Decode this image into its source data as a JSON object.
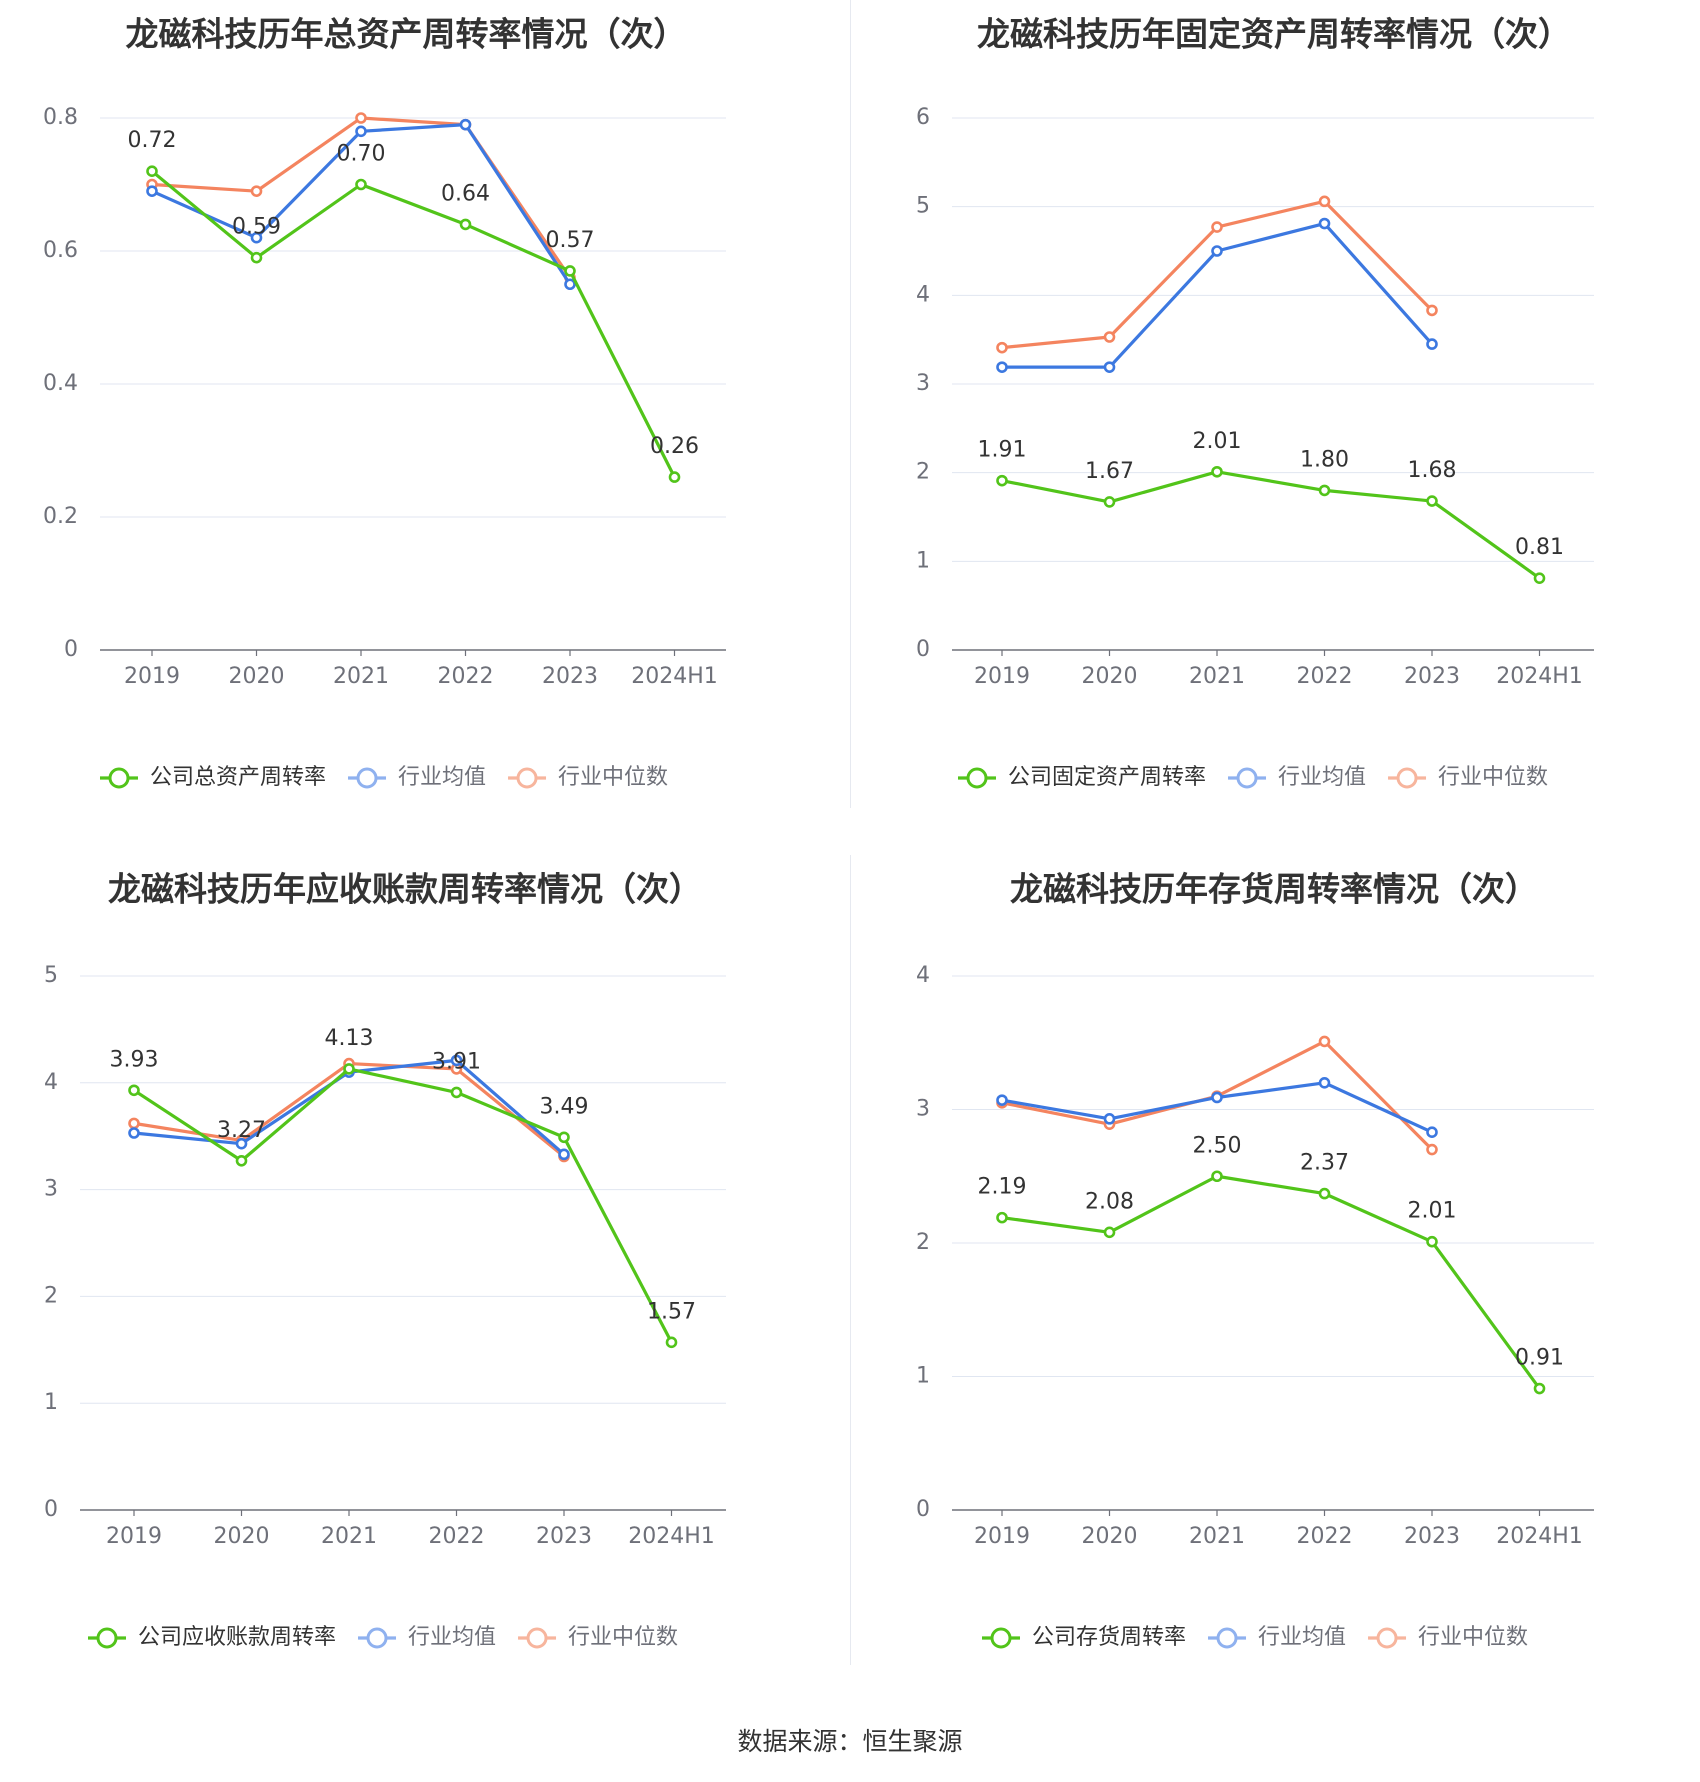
{
  "source": "数据来源：恒生聚源",
  "colors": {
    "company": "#52c41a",
    "avg": "#3c78e0",
    "median": "#f4845f",
    "legend_avg": "#8fb1ef",
    "legend_median": "#f7b59d"
  },
  "chart_data": [
    {
      "type": "line",
      "title": "龙磁科技历年总资产周转率情况（次）",
      "categories": [
        "2019",
        "2020",
        "2021",
        "2022",
        "2023",
        "2024H1"
      ],
      "ylim": [
        0,
        0.8
      ],
      "yticks": [
        "0",
        "0.2",
        "0.4",
        "0.6",
        "0.8"
      ],
      "ytick_values": [
        0,
        0.2,
        0.4,
        0.6,
        0.8
      ],
      "series": [
        {
          "name": "公司总资产周转率",
          "role": "company",
          "values": [
            0.72,
            0.59,
            0.7,
            0.64,
            0.57,
            0.26
          ],
          "labels": [
            "0.72",
            "0.59",
            "0.70",
            "0.64",
            "0.57",
            "0.26"
          ]
        },
        {
          "name": "行业均值",
          "role": "avg",
          "values": [
            0.69,
            0.62,
            0.78,
            0.79,
            0.55,
            null
          ]
        },
        {
          "name": "行业中位数",
          "role": "median",
          "values": [
            0.7,
            0.69,
            0.8,
            0.79,
            0.56,
            null
          ]
        }
      ]
    },
    {
      "type": "line",
      "title": "龙磁科技历年固定资产周转率情况（次）",
      "categories": [
        "2019",
        "2020",
        "2021",
        "2022",
        "2023",
        "2024H1"
      ],
      "ylim": [
        0,
        6
      ],
      "yticks": [
        "0",
        "1",
        "2",
        "3",
        "4",
        "5",
        "6"
      ],
      "ytick_values": [
        0,
        1,
        2,
        3,
        4,
        5,
        6
      ],
      "series": [
        {
          "name": "公司固定资产周转率",
          "role": "company",
          "values": [
            1.91,
            1.67,
            2.01,
            1.8,
            1.68,
            0.81
          ],
          "labels": [
            "1.91",
            "1.67",
            "2.01",
            "1.80",
            "1.68",
            "0.81"
          ]
        },
        {
          "name": "行业均值",
          "role": "avg",
          "values": [
            3.19,
            3.19,
            4.5,
            4.81,
            3.45,
            null
          ]
        },
        {
          "name": "行业中位数",
          "role": "median",
          "values": [
            3.41,
            3.53,
            4.77,
            5.06,
            3.83,
            null
          ]
        }
      ]
    },
    {
      "type": "line",
      "title": "龙磁科技历年应收账款周转率情况（次）",
      "categories": [
        "2019",
        "2020",
        "2021",
        "2022",
        "2023",
        "2024H1"
      ],
      "ylim": [
        0,
        5
      ],
      "yticks": [
        "0",
        "1",
        "2",
        "3",
        "4",
        "5"
      ],
      "ytick_values": [
        0,
        1,
        2,
        3,
        4,
        5
      ],
      "series": [
        {
          "name": "公司应收账款周转率",
          "role": "company",
          "values": [
            3.93,
            3.27,
            4.13,
            3.91,
            3.49,
            1.57
          ],
          "labels": [
            "3.93",
            "3.27",
            "4.13",
            "3.91",
            "3.49",
            "1.57"
          ]
        },
        {
          "name": "行业均值",
          "role": "avg",
          "values": [
            3.53,
            3.43,
            4.1,
            4.21,
            3.33,
            null
          ]
        },
        {
          "name": "行业中位数",
          "role": "median",
          "values": [
            3.62,
            3.46,
            4.18,
            4.13,
            3.31,
            null
          ]
        }
      ]
    },
    {
      "type": "line",
      "title": "龙磁科技历年存货周转率情况（次）",
      "categories": [
        "2019",
        "2020",
        "2021",
        "2022",
        "2023",
        "2024H1"
      ],
      "ylim": [
        0,
        4
      ],
      "yticks": [
        "0",
        "1",
        "2",
        "3",
        "4"
      ],
      "ytick_values": [
        0,
        1,
        2,
        3,
        4
      ],
      "series": [
        {
          "name": "公司存货周转率",
          "role": "company",
          "values": [
            2.19,
            2.08,
            2.5,
            2.37,
            2.01,
            0.91
          ],
          "labels": [
            "2.19",
            "2.08",
            "2.50",
            "2.37",
            "2.01",
            "0.91"
          ]
        },
        {
          "name": "行业均值",
          "role": "avg",
          "values": [
            3.07,
            2.93,
            3.09,
            3.2,
            2.83,
            null
          ]
        },
        {
          "name": "行业中位数",
          "role": "median",
          "values": [
            3.05,
            2.89,
            3.1,
            3.51,
            2.7,
            null
          ]
        }
      ]
    }
  ]
}
